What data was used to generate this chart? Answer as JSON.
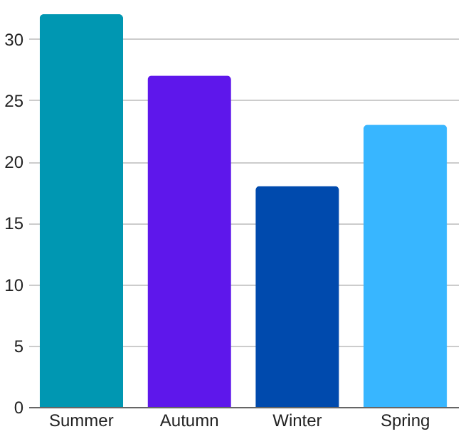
{
  "chart_data": {
    "type": "bar",
    "categories": [
      "Summer",
      "Autumn",
      "Winter",
      "Spring"
    ],
    "values": [
      32,
      27,
      18,
      23
    ],
    "colors": [
      "#0097b2",
      "#5e17eb",
      "#004aad",
      "#38b6ff"
    ],
    "ylim": [
      0,
      32
    ],
    "yticks": [
      0,
      5,
      10,
      15,
      20,
      25,
      30
    ],
    "grid": "y"
  }
}
